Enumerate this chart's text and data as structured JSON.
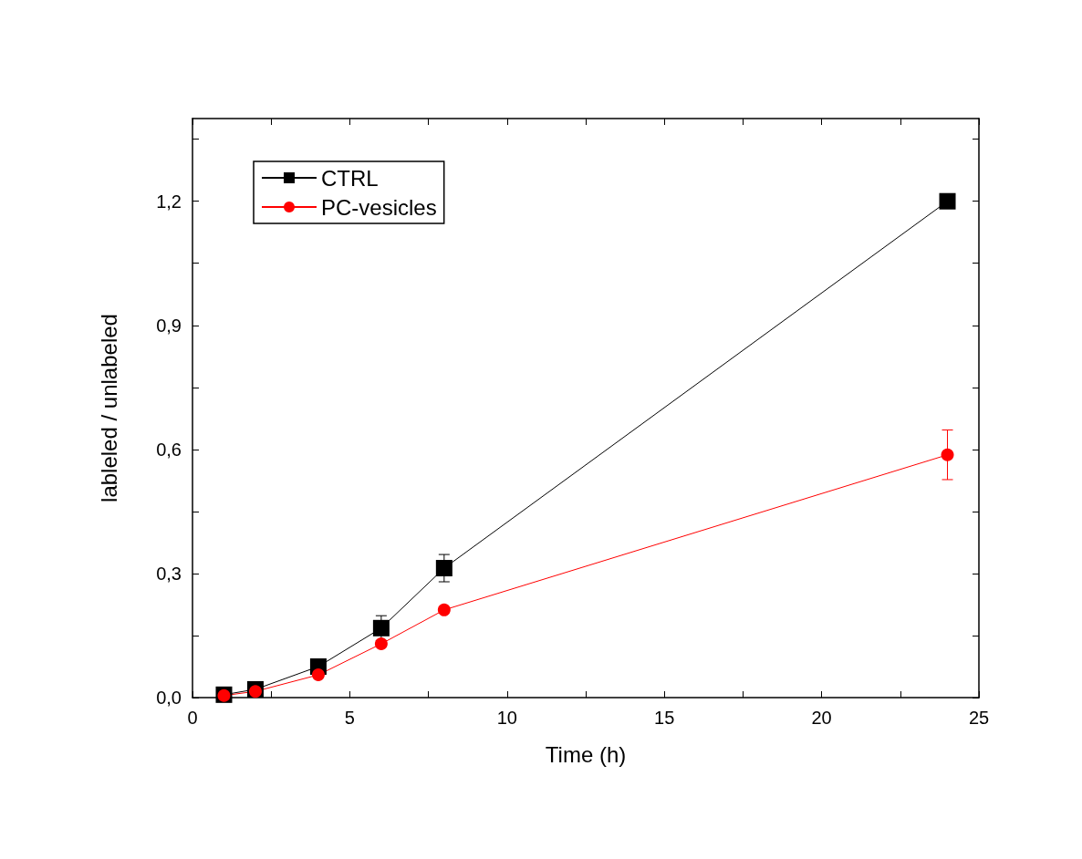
{
  "chart_data": {
    "type": "line",
    "xlabel": "Time (h)",
    "ylabel": "lableled / unlabeled",
    "xlim": [
      0,
      25
    ],
    "ylim": [
      0,
      1.4
    ],
    "xticks": [
      0,
      {
        "value": 2.5,
        "label": null
      },
      5,
      {
        "value": 7.5,
        "label": null
      },
      10,
      {
        "value": 12.5,
        "label": null
      },
      15,
      {
        "value": 17.5,
        "label": null
      },
      20,
      {
        "value": 22.5,
        "label": null
      },
      25
    ],
    "yticks": [
      {
        "value": 0,
        "label": "0,0"
      },
      {
        "value": 0.15,
        "label": null
      },
      {
        "value": 0.3,
        "label": "0,3"
      },
      {
        "value": 0.45,
        "label": null
      },
      {
        "value": 0.6,
        "label": "0,6"
      },
      {
        "value": 0.75,
        "label": null
      },
      {
        "value": 0.9,
        "label": "0,9"
      },
      {
        "value": 1.05,
        "label": null
      },
      {
        "value": 1.2,
        "label": "1,2"
      },
      {
        "value": 1.35,
        "label": null
      }
    ],
    "grid": false,
    "legend": "top left",
    "line_style": "solid",
    "series": [
      {
        "name": "CTRL",
        "color": "#000000",
        "marker": "square",
        "x": [
          1,
          2,
          4,
          6,
          8,
          24
        ],
        "values": [
          0.007,
          0.02,
          0.075,
          0.168,
          0.313,
          1.2
        ],
        "errors": [
          null,
          null,
          null,
          0.03,
          0.033,
          null
        ]
      },
      {
        "name": "PC-vesicles",
        "color": "#ff0000",
        "marker": "circle",
        "x": [
          1,
          2,
          4,
          6,
          8,
          24
        ],
        "values": [
          0.005,
          0.015,
          0.055,
          0.13,
          0.212,
          0.587
        ],
        "errors": [
          null,
          null,
          null,
          null,
          null,
          0.06
        ]
      }
    ]
  }
}
